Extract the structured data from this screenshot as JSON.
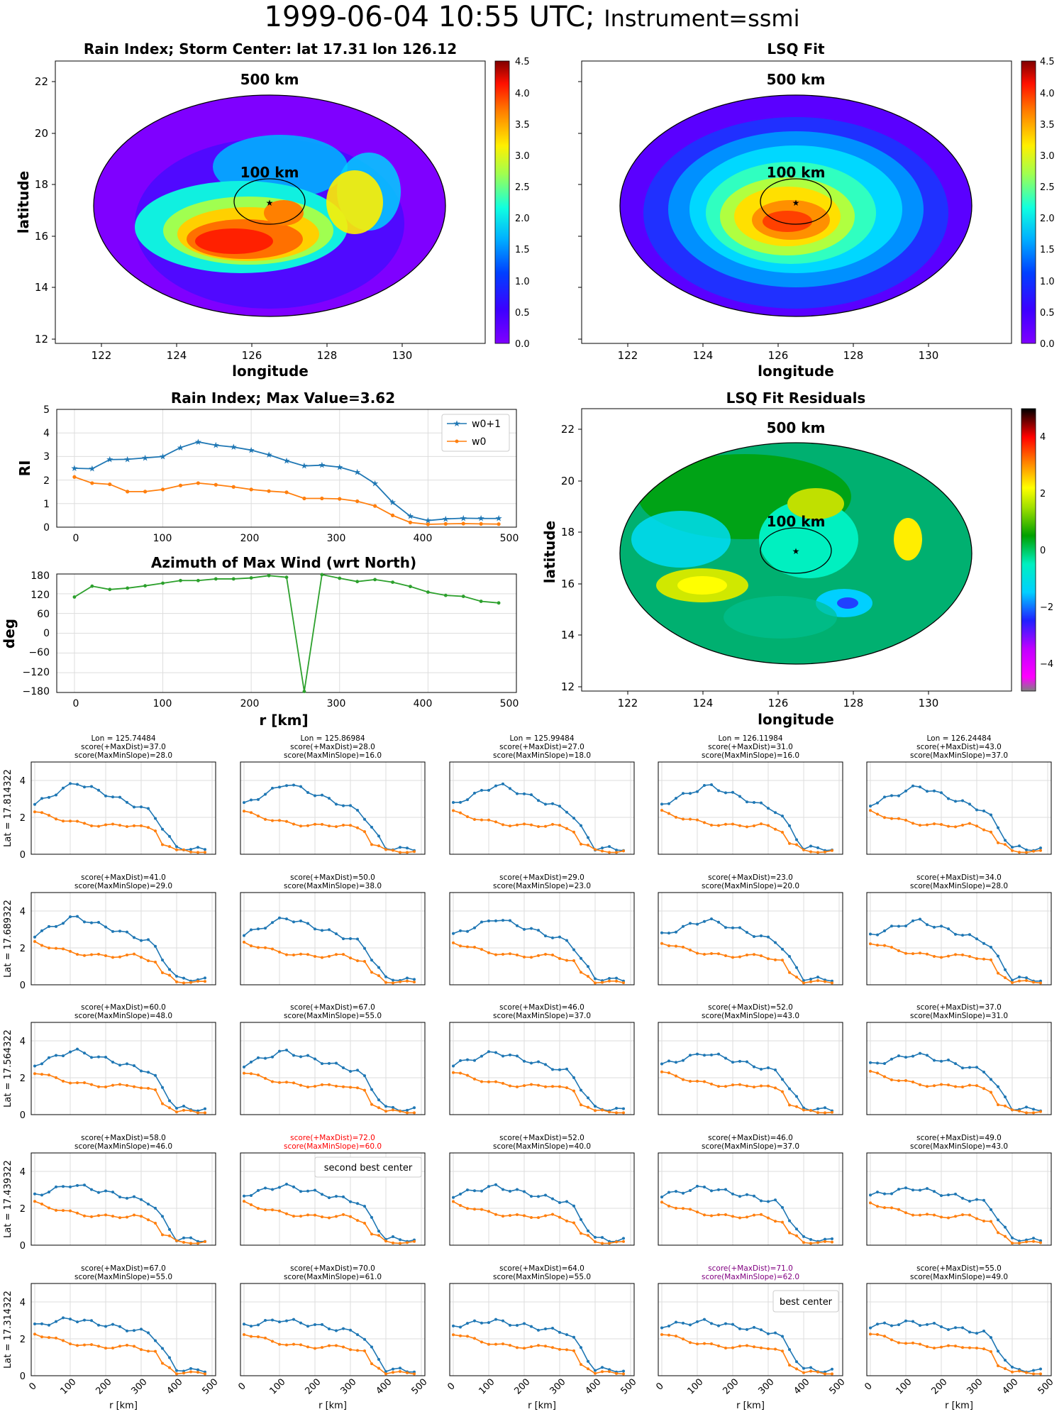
{
  "header": {
    "timestamp": "1999-06-04 10:55 UTC;",
    "instrument": "Instrument=ssmi"
  },
  "colors": {
    "w0p1": "#1f77b4",
    "w0": "#ff7f0e",
    "azimuth": "#2ca02c",
    "ellipse": "#000000",
    "best": "#800080",
    "second": "#ff0000"
  },
  "maps": {
    "rain_index": {
      "title": "Rain Index; Storm Center: lat 17.31 lon 126.12",
      "xlabel": "longitude",
      "ylabel": "latitude",
      "xticks": [
        "122",
        "124",
        "126",
        "128",
        "130"
      ],
      "yticks": [
        "12",
        "14",
        "16",
        "18",
        "20",
        "22"
      ],
      "colorbar_ticks": [
        "0.0",
        "0.5",
        "1.0",
        "1.5",
        "2.0",
        "2.5",
        "3.0",
        "3.5",
        "4.0",
        "4.5"
      ],
      "label_500": "500 km",
      "label_100": "100 km",
      "center": {
        "lat": 17.31,
        "lon": 126.12
      },
      "colormap": "jet",
      "range": [
        0,
        4.5
      ]
    },
    "lsq_fit": {
      "title": "LSQ Fit",
      "xlabel": "longitude",
      "xticks": [
        "122",
        "124",
        "126",
        "128",
        "130"
      ],
      "colorbar_ticks": [
        "0.0",
        "0.5",
        "1.0",
        "1.5",
        "2.0",
        "2.5",
        "3.0",
        "3.5",
        "4.0",
        "4.5"
      ],
      "label_500": "500 km",
      "label_100": "100 km",
      "colormap": "jet",
      "range": [
        0,
        4.5
      ]
    },
    "residuals": {
      "title": "LSQ Fit Residuals",
      "xlabel": "longitude",
      "ylabel": "latitude",
      "xticks": [
        "122",
        "124",
        "126",
        "128",
        "130"
      ],
      "yticks": [
        "12",
        "14",
        "16",
        "18",
        "20",
        "22"
      ],
      "colorbar_ticks": [
        "−4",
        "−2",
        "0",
        "2",
        "4"
      ],
      "label_500": "500 km",
      "label_100": "100 km",
      "colormap": "gist_ncar",
      "range": [
        -5,
        5
      ]
    }
  },
  "profiles": {
    "rain_index": {
      "title": "Rain Index; Max Value=3.62",
      "ylabel": "RI",
      "yticks": [
        "0",
        "1",
        "2",
        "3",
        "4",
        "5"
      ],
      "xticks": [
        "0",
        "100",
        "200",
        "300",
        "400",
        "500"
      ],
      "legend": [
        "w0+1",
        "w0"
      ]
    },
    "azimuth": {
      "title": "Azimuth of Max Wind (wrt North)",
      "ylabel": "deg",
      "xlabel": "r [km]",
      "yticks": [
        "180",
        "120",
        "60",
        "0",
        "−60",
        "−120",
        "−180"
      ],
      "xticks": [
        "0",
        "100",
        "200",
        "300",
        "400",
        "500"
      ]
    }
  },
  "grid": {
    "lons": [
      "Lon = 125.74484",
      "Lon = 125.86984",
      "Lon = 125.99484",
      "Lon = 126.11984",
      "Lon = 126.24484"
    ],
    "lats": [
      "Lat = 17.814322",
      "Lat = 17.689322",
      "Lat = 17.564322",
      "Lat = 17.439322",
      "Lat = 17.314322"
    ],
    "xlabel": "r [km]",
    "xticks": [
      "0",
      "100",
      "200",
      "300",
      "400",
      "500"
    ],
    "yticks": [
      "0",
      "2",
      "4"
    ],
    "second_best_label": "second best center",
    "best_label": "best center",
    "scores": [
      [
        [
          "score(+MaxDist)=37.0",
          "score(MaxMinSlope)=28.0"
        ],
        [
          "score(+MaxDist)=28.0",
          "score(MaxMinSlope)=16.0"
        ],
        [
          "score(+MaxDist)=27.0",
          "score(MaxMinSlope)=18.0"
        ],
        [
          "score(+MaxDist)=31.0",
          "score(MaxMinSlope)=16.0"
        ],
        [
          "score(+MaxDist)=43.0",
          "score(MaxMinSlope)=37.0"
        ]
      ],
      [
        [
          "score(+MaxDist)=41.0",
          "score(MaxMinSlope)=29.0"
        ],
        [
          "score(+MaxDist)=50.0",
          "score(MaxMinSlope)=38.0"
        ],
        [
          "score(+MaxDist)=29.0",
          "score(MaxMinSlope)=23.0"
        ],
        [
          "score(+MaxDist)=23.0",
          "score(MaxMinSlope)=20.0"
        ],
        [
          "score(+MaxDist)=34.0",
          "score(MaxMinSlope)=28.0"
        ]
      ],
      [
        [
          "score(+MaxDist)=60.0",
          "score(MaxMinSlope)=48.0"
        ],
        [
          "score(+MaxDist)=67.0",
          "score(MaxMinSlope)=55.0"
        ],
        [
          "score(+MaxDist)=46.0",
          "score(MaxMinSlope)=37.0"
        ],
        [
          "score(+MaxDist)=52.0",
          "score(MaxMinSlope)=43.0"
        ],
        [
          "score(+MaxDist)=37.0",
          "score(MaxMinSlope)=31.0"
        ]
      ],
      [
        [
          "score(+MaxDist)=58.0",
          "score(MaxMinSlope)=46.0"
        ],
        [
          "score(+MaxDist)=72.0",
          "score(MaxMinSlope)=60.0"
        ],
        [
          "score(+MaxDist)=52.0",
          "score(MaxMinSlope)=40.0"
        ],
        [
          "score(+MaxDist)=46.0",
          "score(MaxMinSlope)=37.0"
        ],
        [
          "score(+MaxDist)=49.0",
          "score(MaxMinSlope)=43.0"
        ]
      ],
      [
        [
          "score(+MaxDist)=67.0",
          "score(MaxMinSlope)=55.0"
        ],
        [
          "score(+MaxDist)=70.0",
          "score(MaxMinSlope)=61.0"
        ],
        [
          "score(+MaxDist)=64.0",
          "score(MaxMinSlope)=55.0"
        ],
        [
          "score(+MaxDist)=71.0",
          "score(MaxMinSlope)=62.0"
        ],
        [
          "score(+MaxDist)=55.0",
          "score(MaxMinSlope)=49.0"
        ]
      ]
    ]
  },
  "chart_data": [
    {
      "type": "line",
      "title": "Rain Index; Max Value=3.62",
      "ylabel": "RI",
      "xlim": [
        -20,
        500
      ],
      "ylim": [
        0,
        5
      ],
      "x": [
        0,
        20,
        40,
        60,
        80,
        100,
        120,
        140,
        160,
        180,
        200,
        220,
        240,
        260,
        280,
        300,
        320,
        340,
        360,
        380,
        400,
        420,
        440,
        460,
        480
      ],
      "series": [
        {
          "name": "w0+1",
          "values": [
            2.5,
            2.48,
            2.87,
            2.88,
            2.94,
            3.0,
            3.38,
            3.62,
            3.48,
            3.4,
            3.27,
            3.07,
            2.82,
            2.6,
            2.63,
            2.55,
            2.33,
            1.85,
            1.05,
            0.46,
            0.28,
            0.35,
            0.38,
            0.37,
            0.37
          ]
        },
        {
          "name": "w0",
          "values": [
            2.13,
            1.87,
            1.82,
            1.51,
            1.51,
            1.6,
            1.77,
            1.87,
            1.8,
            1.71,
            1.6,
            1.53,
            1.48,
            1.22,
            1.22,
            1.2,
            1.1,
            0.9,
            0.5,
            0.2,
            0.12,
            0.14,
            0.15,
            0.14,
            0.13
          ]
        }
      ]
    },
    {
      "type": "line",
      "title": "Azimuth of Max Wind (wrt North)",
      "xlabel": "r [km]",
      "ylabel": "deg",
      "xlim": [
        -20,
        500
      ],
      "ylim": [
        -180,
        180
      ],
      "x": [
        0,
        20,
        40,
        60,
        80,
        100,
        120,
        140,
        160,
        180,
        200,
        220,
        240,
        260,
        280,
        300,
        320,
        340,
        360,
        380,
        400,
        420,
        440,
        460,
        480
      ],
      "series": [
        {
          "values": [
            110,
            143,
            133,
            137,
            144,
            152,
            160,
            160,
            165,
            165,
            168,
            175,
            170,
            -177,
            178,
            167,
            157,
            163,
            155,
            142,
            125,
            115,
            112,
            97,
            92
          ]
        }
      ]
    }
  ]
}
